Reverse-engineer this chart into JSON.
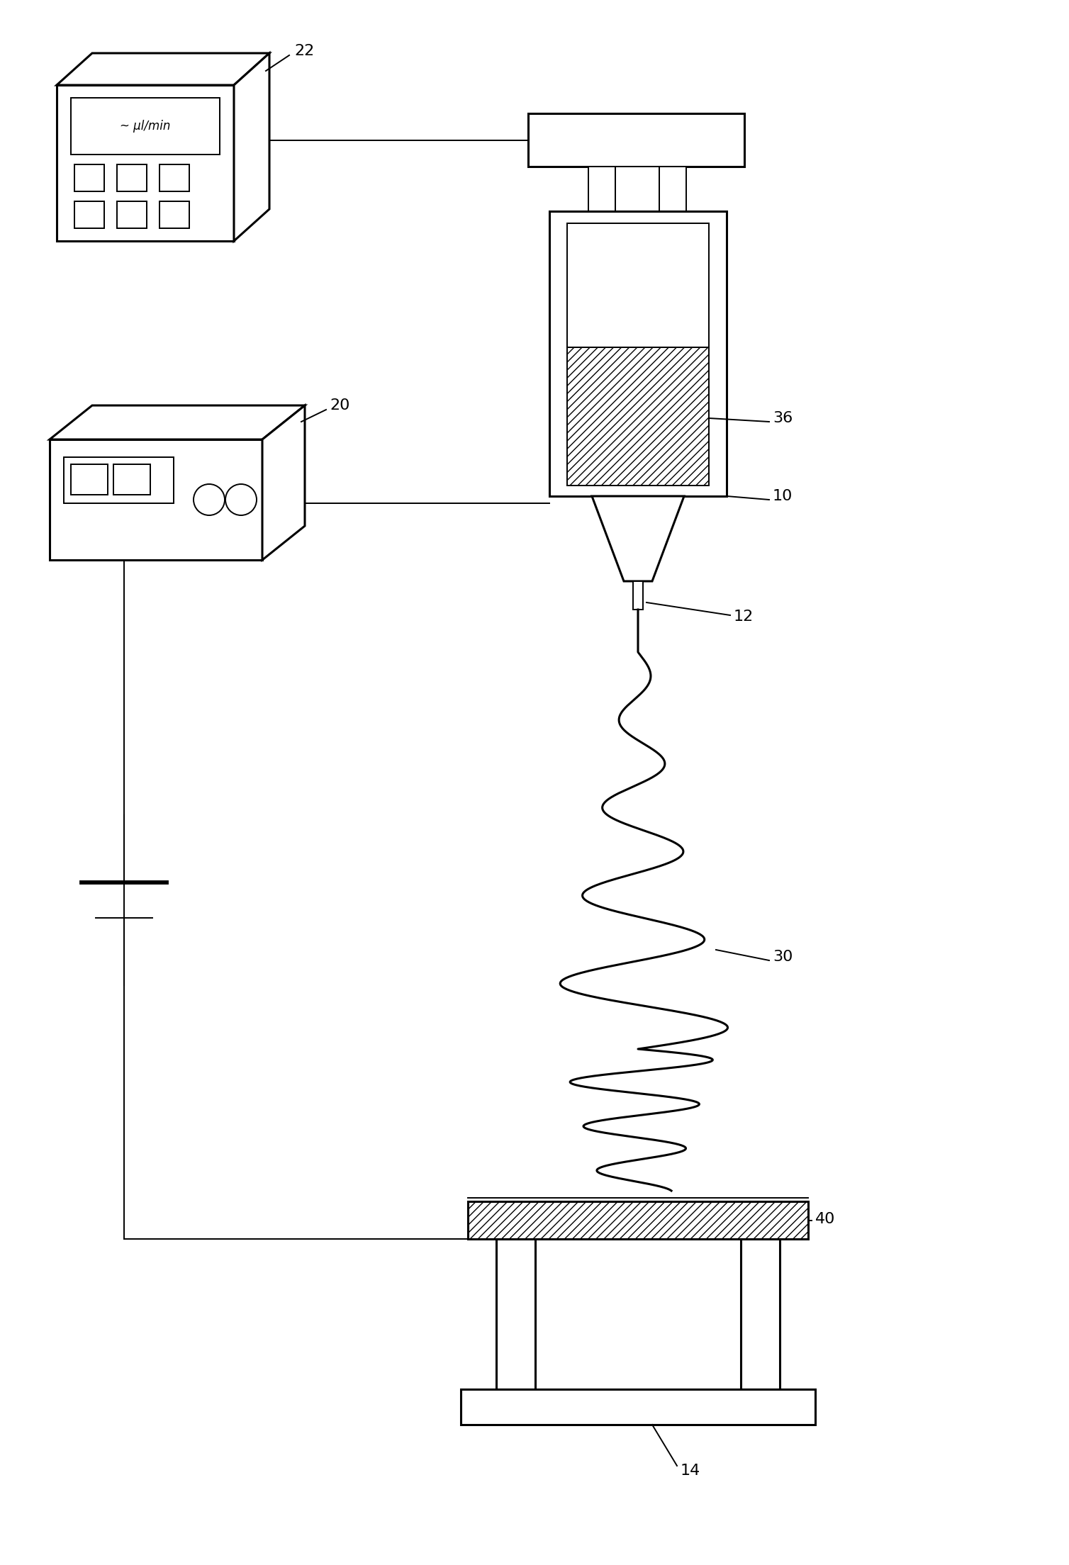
{
  "bg": "#ffffff",
  "lc": "#000000",
  "lw": 2.2,
  "lt": 1.4,
  "fig_w": 15.08,
  "fig_h": 22.08,
  "dpi": 100,
  "font_label": 16,
  "font_text": 11
}
